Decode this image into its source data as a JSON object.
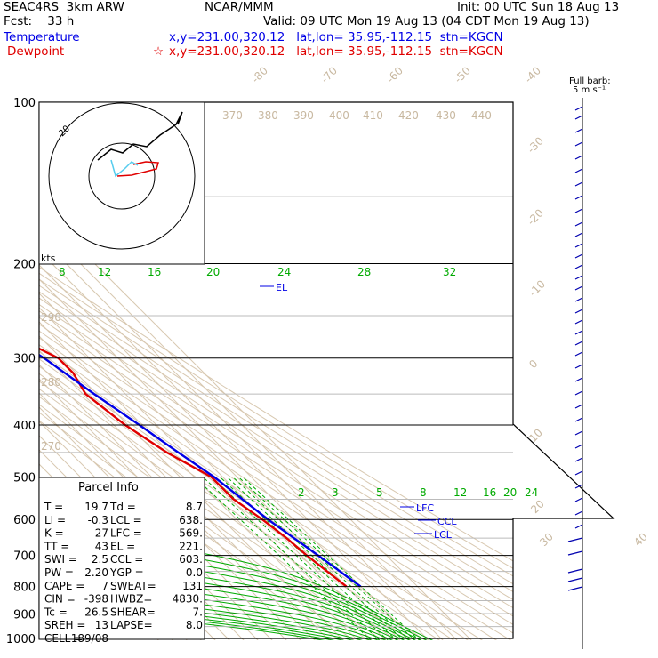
{
  "header": {
    "experiment": "SEAC4RS  3km ARW",
    "forecast": "Fcst:    33 h",
    "center": "NCAR/MMM",
    "init": "Init: 00 UTC Sun 18 Aug 13",
    "valid": "Valid: 09 UTC Mon 19 Aug 13 (04 CDT Mon 19 Aug 13)",
    "temp_label": "Temperature",
    "temp_loc": "x,y=231.00,320.12   lat,lon= 35.95,-112.15  stn=KGCN",
    "dew_label": "Dewpoint",
    "dew_loc": "x,y=231.00,320.12   lat,lon= 35.95,-112.15  stn=KGCN",
    "star": "☆",
    "barb_note_1": "Full barb:",
    "barb_note_2": "5 m s⁻¹"
  },
  "colors": {
    "temperature": "#e00000",
    "dewpoint_profile": "#0000e6",
    "isotherm": "#d8c8b0",
    "dry_adiabat": "#d8c8b0",
    "moist_adiabat": "#00aa00",
    "mixing_ratio": "#00aa00",
    "hodo_light": "#55ccee"
  },
  "chart_data": {
    "type": "line",
    "chart_kind": "skew-T log-p sounding",
    "y_scale": "log pressure",
    "pressure_ticks": [
      "100",
      "200",
      "300",
      "400",
      "500",
      "600",
      "700",
      "800",
      "900",
      "1000"
    ],
    "isotherm_labels": [
      "-80",
      "-70",
      "-60",
      "-50",
      "-40",
      "-30",
      "-20",
      "-10",
      "0",
      "10",
      "20",
      "30",
      "40"
    ],
    "theta_labels": [
      "370",
      "380",
      "390",
      "400",
      "410",
      "420",
      "430",
      "440",
      "290",
      "280",
      "270"
    ],
    "mixing_ratio_upper": [
      "8",
      "12",
      "16",
      "20",
      "24",
      "28",
      "32"
    ],
    "mixing_ratio_lower": [
      "2",
      "3",
      "5",
      "8",
      "12",
      "16",
      "20",
      "24"
    ],
    "hodograph_labels": {
      "ring": "20",
      "units": "kts"
    },
    "series": [
      {
        "color": "#e00000",
        "points": [
          [
            100,
            -58
          ],
          [
            130,
            -62
          ],
          [
            160,
            -64
          ],
          [
            200,
            -64
          ],
          [
            230,
            -58
          ],
          [
            260,
            -56
          ],
          [
            300,
            -32
          ],
          [
            320,
            -32
          ],
          [
            350,
            -38
          ],
          [
            400,
            -32
          ],
          [
            450,
            -22
          ],
          [
            500,
            -8
          ],
          [
            550,
            -8
          ],
          [
            600,
            -2
          ],
          [
            650,
            2
          ],
          [
            700,
            4
          ],
          [
            800,
            10
          ]
        ]
      },
      {
        "color": "#0000e6",
        "points": [
          [
            100,
            -60
          ],
          [
            130,
            -70
          ],
          [
            160,
            -74
          ],
          [
            200,
            -68
          ],
          [
            250,
            -58
          ],
          [
            300,
            -42
          ],
          [
            350,
            -32
          ],
          [
            400,
            -22
          ],
          [
            450,
            -14
          ],
          [
            500,
            -6
          ],
          [
            600,
            2
          ],
          [
            700,
            12
          ],
          [
            800,
            20
          ]
        ]
      }
    ],
    "levels": {
      "EL": "EL",
      "LFC": "LFC",
      "CCL": "CCL",
      "LCL": "LCL"
    }
  },
  "parcel_info": {
    "title": "Parcel Info",
    "rows": [
      [
        "T  =",
        "19.7",
        "Td =",
        "8.7"
      ],
      [
        "LI =",
        "-0.3",
        "LCL =",
        "638."
      ],
      [
        "K  =",
        "27",
        "LFC =",
        "569."
      ],
      [
        "TT =",
        "43",
        "EL  =",
        "221."
      ],
      [
        "SWI =",
        "2.5",
        "CCL =",
        "603."
      ],
      [
        "PW =",
        "2.20",
        "YGP =",
        "0.0"
      ],
      [
        "CAPE =",
        "7",
        "SWEAT=",
        "131"
      ],
      [
        "CIN =",
        "-398",
        "HWBZ=",
        "4830."
      ],
      [
        "Tc =",
        "26.5",
        "SHEAR=",
        "7."
      ],
      [
        "SREH =",
        "13",
        "LAPSE=",
        "8.0"
      ],
      [
        "CELL =",
        "189/08",
        "",
        ""
      ]
    ]
  }
}
